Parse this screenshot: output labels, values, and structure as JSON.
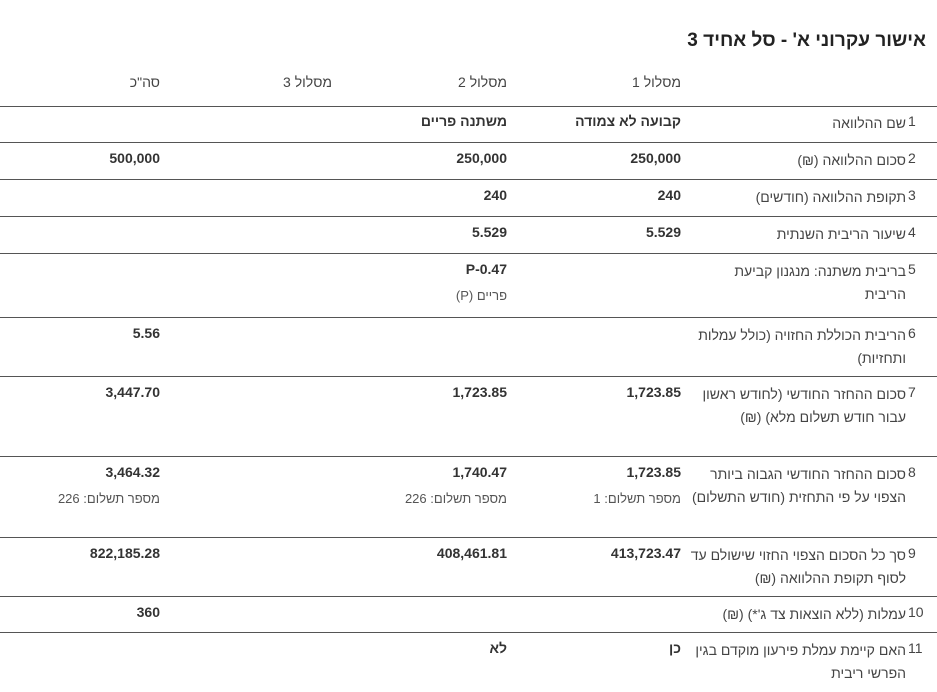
{
  "title": "אישור עקרוני א' - סל אחיד 3",
  "columns": [
    "מסלול 1",
    "מסלול 2",
    "מסלול 3",
    "סה\"כ"
  ],
  "rows": [
    {
      "num": "1",
      "label": "שם ההלוואה",
      "c1": "קבועה לא צמודה",
      "c2": "משתנה פריים",
      "c3": "",
      "total": ""
    },
    {
      "num": "2",
      "label": "סכום ההלוואה (₪)",
      "c1": "250,000",
      "c2": "250,000",
      "c3": "",
      "total": "500,000"
    },
    {
      "num": "3",
      "label": "תקופת ההלוואה (חודשים)",
      "c1": "240",
      "c2": "240",
      "c3": "",
      "total": ""
    },
    {
      "num": "4",
      "label": "שיעור הריבית השנתית",
      "c1": "5.529",
      "c2": "5.529",
      "c3": "",
      "total": ""
    },
    {
      "num": "5",
      "label": "בריבית משתנה: מנגנון קביעת הריבית",
      "c1": "",
      "c2": "P-0.47",
      "c2_sub": "פריים (P)",
      "c3": "",
      "total": ""
    },
    {
      "num": "6",
      "label": "הריבית הכוללת החזויה (כולל עמלות ותחזיות)",
      "c1": "",
      "c2": "",
      "c3": "",
      "total": "5.56"
    },
    {
      "num": "7",
      "label": "סכום ההחזר החודשי (לחודש ראשון עבור חודש תשלום מלא) (₪)",
      "c1": "1,723.85",
      "c2": "1,723.85",
      "c3": "",
      "total": "3,447.70"
    },
    {
      "num": "8",
      "label": "סכום ההחזר החודשי הגבוה ביותר הצפוי על פי התחזית (חודש התשלום)",
      "c1": "1,723.85",
      "c1_sub": "מספר תשלום:  1",
      "c2": "1,740.47",
      "c2_sub": "מספר תשלום:  226",
      "c3": "",
      "total": "3,464.32",
      "total_sub": "מספר תשלום:  226"
    },
    {
      "num": "9",
      "label": "סך כל הסכום הצפוי החזוי שישולם עד לסוף תקופת ההלוואה (₪)",
      "c1": "413,723.47",
      "c2": "408,461.81",
      "c3": "",
      "total": "822,185.28"
    },
    {
      "num": "10",
      "label": "עמלות (ללא הוצאות צד ג'*) (₪)",
      "c1": "",
      "c2": "",
      "c3": "",
      "total": "360"
    },
    {
      "num": "11",
      "label": "האם קיימת עמלת פירעון מוקדם בגין הפרשי ריבית",
      "c1": "כן",
      "c2": "לא",
      "c3": "",
      "total": ""
    }
  ]
}
